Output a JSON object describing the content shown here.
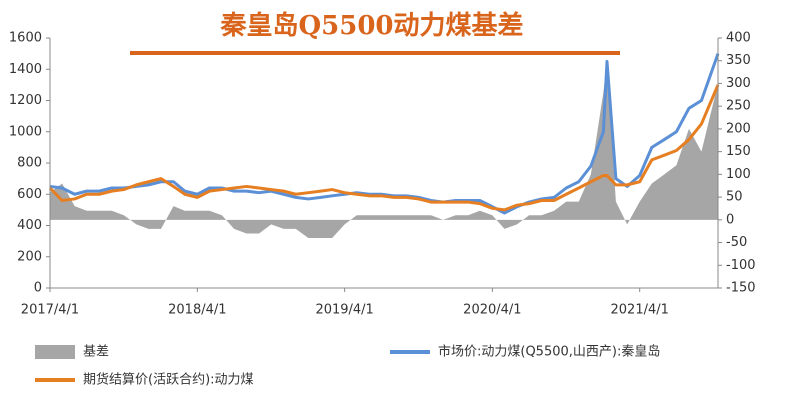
{
  "chart_data": {
    "type": "line",
    "title": "秦皇岛Q5500动力煤基差",
    "x": [
      "2017/4/1",
      "2017/5/1",
      "2017/6/1",
      "2017/7/1",
      "2017/8/1",
      "2017/9/1",
      "2017/10/1",
      "2017/11/1",
      "2017/12/1",
      "2018/1/1",
      "2018/2/1",
      "2018/3/1",
      "2018/4/1",
      "2018/5/1",
      "2018/6/1",
      "2018/7/1",
      "2018/8/1",
      "2018/9/1",
      "2018/10/1",
      "2018/11/1",
      "2018/12/1",
      "2019/1/1",
      "2019/2/1",
      "2019/3/1",
      "2019/4/1",
      "2019/5/1",
      "2019/6/1",
      "2019/7/1",
      "2019/8/1",
      "2019/9/1",
      "2019/10/1",
      "2019/11/1",
      "2019/12/1",
      "2020/1/1",
      "2020/2/1",
      "2020/3/1",
      "2020/4/1",
      "2020/5/1",
      "2020/6/1",
      "2020/7/1",
      "2020/8/1",
      "2020/9/1",
      "2020/10/1",
      "2020/11/1",
      "2020/12/1",
      "2021/1/1",
      "2021/1/10",
      "2021/2/1",
      "2021/3/1",
      "2021/4/1",
      "2021/5/1",
      "2021/6/1",
      "2021/7/1",
      "2021/8/1",
      "2021/9/1",
      "2021/10/12"
    ],
    "series": [
      {
        "name": "基差",
        "color": "#a6a6a6",
        "axis": "y2",
        "kind": "area",
        "values": [
          60,
          80,
          30,
          20,
          20,
          20,
          10,
          -10,
          -20,
          -20,
          30,
          20,
          20,
          20,
          10,
          -20,
          -30,
          -30,
          -10,
          -20,
          -20,
          -40,
          -40,
          -40,
          -10,
          10,
          10,
          10,
          10,
          10,
          10,
          10,
          0,
          10,
          10,
          20,
          10,
          -20,
          -10,
          10,
          10,
          20,
          40,
          40,
          100,
          280,
          350,
          40,
          -10,
          40,
          80,
          100,
          120,
          200,
          150,
          300
        ]
      },
      {
        "name": "市场价:动力煤(Q5500,山西产):秦皇岛",
        "color": "#5b8fd6",
        "values": [
          650,
          640,
          600,
          620,
          620,
          640,
          640,
          650,
          660,
          680,
          680,
          620,
          600,
          640,
          640,
          620,
          620,
          610,
          620,
          600,
          580,
          570,
          580,
          590,
          600,
          610,
          600,
          600,
          590,
          590,
          580,
          560,
          550,
          560,
          560,
          560,
          520,
          480,
          520,
          550,
          570,
          580,
          640,
          680,
          780,
          1000,
          1450,
          700,
          650,
          720,
          900,
          950,
          1000,
          1150,
          1200,
          1500
        ]
      },
      {
        "name": "期货结算价(活跃合约):动力煤",
        "color": "#e67e22",
        "values": [
          640,
          560,
          570,
          600,
          600,
          620,
          630,
          660,
          680,
          700,
          650,
          600,
          580,
          620,
          630,
          640,
          650,
          640,
          630,
          620,
          600,
          610,
          620,
          630,
          610,
          600,
          590,
          590,
          580,
          580,
          570,
          550,
          550,
          550,
          550,
          540,
          510,
          500,
          530,
          540,
          560,
          560,
          600,
          640,
          680,
          720,
          720,
          660,
          660,
          680,
          820,
          850,
          880,
          950,
          1050,
          1300
        ]
      }
    ],
    "xlim": [
      "2017/4/1",
      "2021/10/12"
    ],
    "xticks": [
      "2017/4/1",
      "2018/4/1",
      "2019/4/1",
      "2020/4/1",
      "2021/4/1"
    ],
    "ylim": [
      0,
      1600
    ],
    "yticks": [
      0,
      200,
      400,
      600,
      800,
      1000,
      1200,
      1400,
      1600
    ],
    "y2lim": [
      -150,
      400
    ],
    "y2ticks": [
      -150,
      -100,
      -50,
      0,
      50,
      100,
      150,
      200,
      250,
      300,
      350,
      400
    ]
  }
}
